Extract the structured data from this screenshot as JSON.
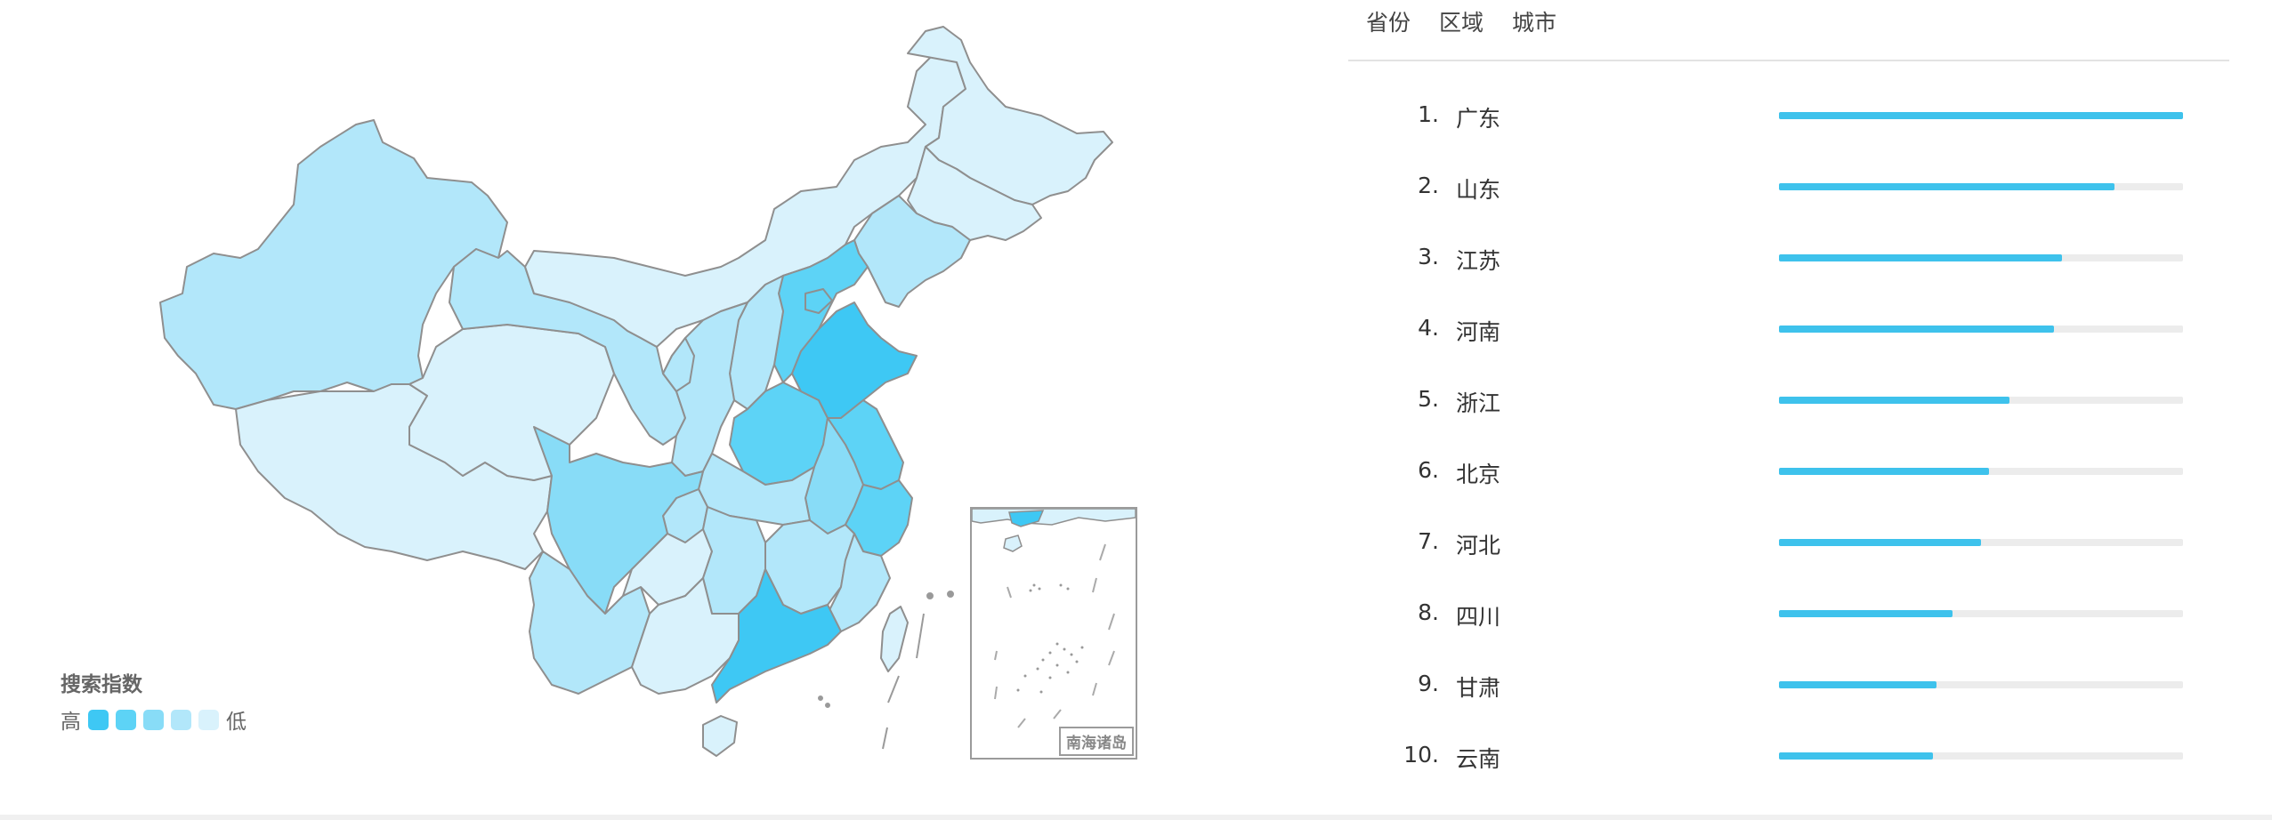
{
  "tabs": [
    "省份",
    "区域",
    "城市"
  ],
  "legend": {
    "title": "搜索指数",
    "high_label": "高",
    "low_label": "低",
    "colors": [
      "#3ec8f4",
      "#5dd3f6",
      "#88dcf7",
      "#b2e7fa",
      "#d9f2fc"
    ]
  },
  "inset_label": "南海诸岛",
  "ranking": [
    {
      "rank": "1.",
      "name": "广东",
      "fraction": 1.0
    },
    {
      "rank": "2.",
      "name": "山东",
      "fraction": 0.83
    },
    {
      "rank": "3.",
      "name": "江苏",
      "fraction": 0.7
    },
    {
      "rank": "4.",
      "name": "河南",
      "fraction": 0.68
    },
    {
      "rank": "5.",
      "name": "浙江",
      "fraction": 0.57
    },
    {
      "rank": "6.",
      "name": "北京",
      "fraction": 0.52
    },
    {
      "rank": "7.",
      "name": "河北",
      "fraction": 0.5
    },
    {
      "rank": "8.",
      "name": "四川",
      "fraction": 0.43
    },
    {
      "rank": "9.",
      "name": "甘肃",
      "fraction": 0.39
    },
    {
      "rank": "10.",
      "name": "云南",
      "fraction": 0.38
    }
  ],
  "map_levels": {
    "xinjiang": 3,
    "tibet": 4,
    "qinghai": 4,
    "gansu": 3,
    "inner-mongolia": 4,
    "heilongjiang": 4,
    "jilin": 4,
    "liaoning": 3,
    "hebei": 1,
    "beijing": 1,
    "shanxi": 3,
    "shaanxi": 3,
    "ningxia": 3,
    "henan": 1,
    "shandong": 0,
    "jiangsu": 1,
    "anhui": 2,
    "zhejiang": 1,
    "hubei": 3,
    "sichuan": 2,
    "chongqing": 3,
    "yunnan": 3,
    "guizhou": 4,
    "hunan": 3,
    "jiangxi": 3,
    "fujian": 3,
    "guangxi": 4,
    "guangdong": 0,
    "hainan": 4,
    "taiwan": 4
  }
}
